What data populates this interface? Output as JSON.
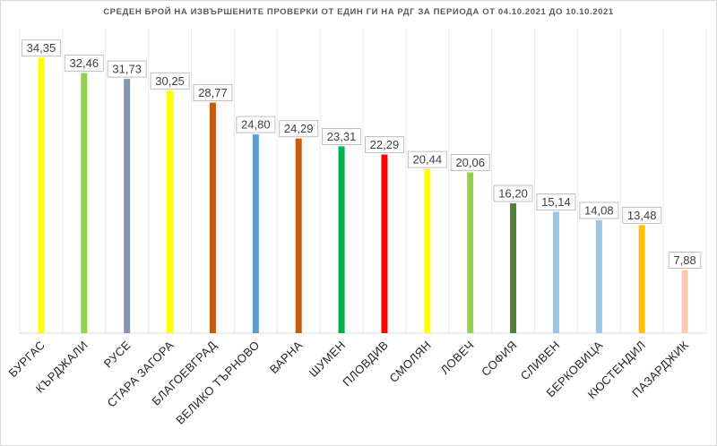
{
  "chart_data": {
    "type": "bar",
    "title": "СРЕДЕН БРОЙ НА ИЗВЪРШЕНИТЕ ПРОВЕРКИ ОТ ЕДИН ГИ НА РДГ ЗА ПЕРИОДА ОТ 04.10.2021 ДО 10.10.2021",
    "xlabel": "",
    "ylabel": "",
    "ylim": [
      0,
      38
    ],
    "grid": "vertical",
    "legend": "none",
    "categories": [
      "БУРГАС",
      "КЪРДЖАЛИ",
      "РУСЕ",
      "СТАРА ЗАГОРА",
      "БЛАГОЕВГРАД",
      "ВЕЛИКО ТЪРНОВО",
      "ВАРНА",
      "ШУМЕН",
      "ПЛОВДИВ",
      "СМОЛЯН",
      "ЛОВЕЧ",
      "СОФИЯ",
      "СЛИВЕН",
      "БЕРКОВИЦА",
      "КЮСТЕНДИЛ",
      "ПАЗАРДЖИК"
    ],
    "values": [
      34.35,
      32.46,
      31.73,
      30.25,
      28.77,
      24.8,
      24.29,
      23.31,
      22.29,
      20.44,
      20.06,
      16.2,
      15.14,
      14.08,
      13.48,
      7.88
    ],
    "data_labels": [
      "34,35",
      "32,46",
      "31,73",
      "30,25",
      "28,77",
      "24,80",
      "24,29",
      "23,31",
      "22,29",
      "20,44",
      "20,06",
      "16,20",
      "15,14",
      "14,08",
      "13,48",
      "7,88"
    ],
    "colors": [
      "#ffff00",
      "#92d050",
      "#8497b0",
      "#ffff00",
      "#c55a11",
      "#5b9bd5",
      "#c55a11",
      "#00b050",
      "#ff0000",
      "#ffff00",
      "#92d050",
      "#548235",
      "#9dc3e6",
      "#9dc3e6",
      "#ffc000",
      "#f8cbad"
    ]
  }
}
